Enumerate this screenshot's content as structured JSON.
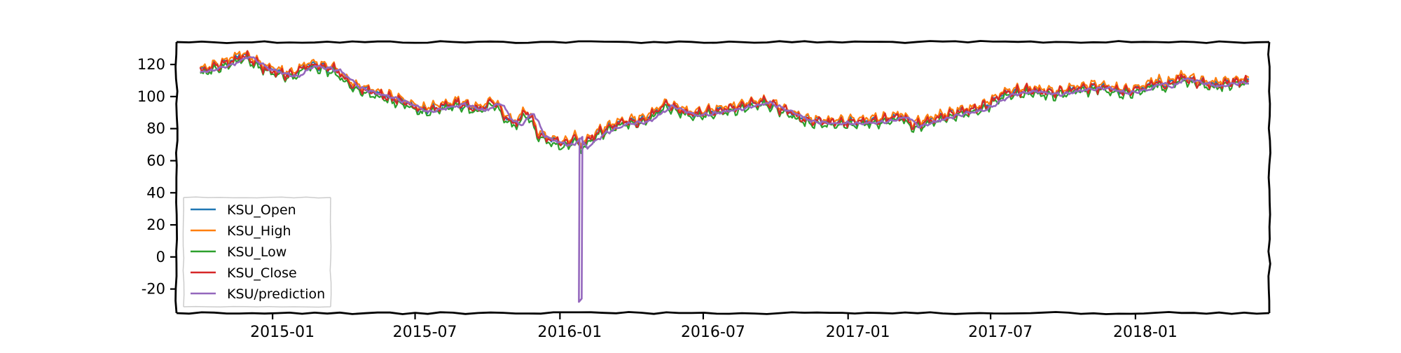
{
  "chart_data": {
    "type": "line",
    "title": "",
    "xlabel": "",
    "ylabel": "",
    "x_ticks": [
      "2015-01",
      "2015-07",
      "2016-01",
      "2016-07",
      "2017-01",
      "2017-07",
      "2018-01"
    ],
    "y_ticks": [
      "120",
      "100",
      "80",
      "60",
      "40",
      "20",
      "0",
      "-20"
    ],
    "x_range": [
      "2014-09-01",
      "2018-06-20"
    ],
    "ylim": [
      -35,
      134
    ],
    "grid": false,
    "legend_position": "lower-left",
    "style": "hand-drawn (xkcd)",
    "anchor_dates": [
      "2014-10-01",
      "2014-11-05",
      "2014-11-25",
      "2014-12-20",
      "2015-01-25",
      "2015-02-15",
      "2015-03-20",
      "2015-04-15",
      "2015-05-20",
      "2015-06-20",
      "2015-07-10",
      "2015-08-05",
      "2015-08-25",
      "2015-09-20",
      "2015-10-10",
      "2015-10-25",
      "2015-11-05",
      "2015-11-20",
      "2015-12-05",
      "2015-12-25",
      "2016-01-10",
      "2016-01-18",
      "2016-01-28",
      "2016-02-20",
      "2016-03-20",
      "2016-04-15",
      "2016-05-15",
      "2016-06-15",
      "2016-07-05",
      "2016-08-10",
      "2016-09-15",
      "2016-10-15",
      "2016-11-10",
      "2016-12-10",
      "2017-01-10",
      "2017-02-10",
      "2017-03-10",
      "2017-03-25",
      "2017-04-20",
      "2017-05-20",
      "2017-06-20",
      "2017-07-20",
      "2017-08-20",
      "2017-09-20",
      "2017-10-20",
      "2017-11-20",
      "2017-12-15",
      "2018-01-10",
      "2018-01-25",
      "2018-02-10",
      "2018-02-25",
      "2018-03-15",
      "2018-04-10",
      "2018-05-01",
      "2018-05-25"
    ],
    "anchor_values": [
      116,
      121,
      126,
      118,
      113,
      120,
      117,
      106,
      101,
      96,
      91,
      94,
      96,
      92,
      97,
      86,
      83,
      91,
      76,
      72,
      70,
      75,
      69,
      78,
      84,
      85,
      95,
      89,
      90,
      93,
      97,
      91,
      85,
      84,
      84,
      85,
      88,
      82,
      86,
      90,
      93,
      102,
      104,
      102,
      105,
      106,
      103,
      105,
      109,
      107,
      112,
      110,
      107,
      109,
      110
    ],
    "series": [
      {
        "name": "KSU_Open",
        "color": "#1f77b4",
        "offset": 0.5,
        "noise": 0.8,
        "lag": 0
      },
      {
        "name": "KSU_High",
        "color": "#ff7f0e",
        "offset": 1.8,
        "noise": 0.8,
        "lag": 0
      },
      {
        "name": "KSU_Low",
        "color": "#2ca02c",
        "offset": -1.8,
        "noise": 0.8,
        "lag": 0
      },
      {
        "name": "KSU_Close",
        "color": "#d62728",
        "offset": 0,
        "noise": 1.4,
        "lag": 0
      },
      {
        "name": "KSU/prediction",
        "color": "#9467bd",
        "offset": -0.8,
        "noise": 0.3,
        "lag": 4,
        "spike": {
          "date": "2016-01-26",
          "value": -28
        }
      }
    ]
  }
}
